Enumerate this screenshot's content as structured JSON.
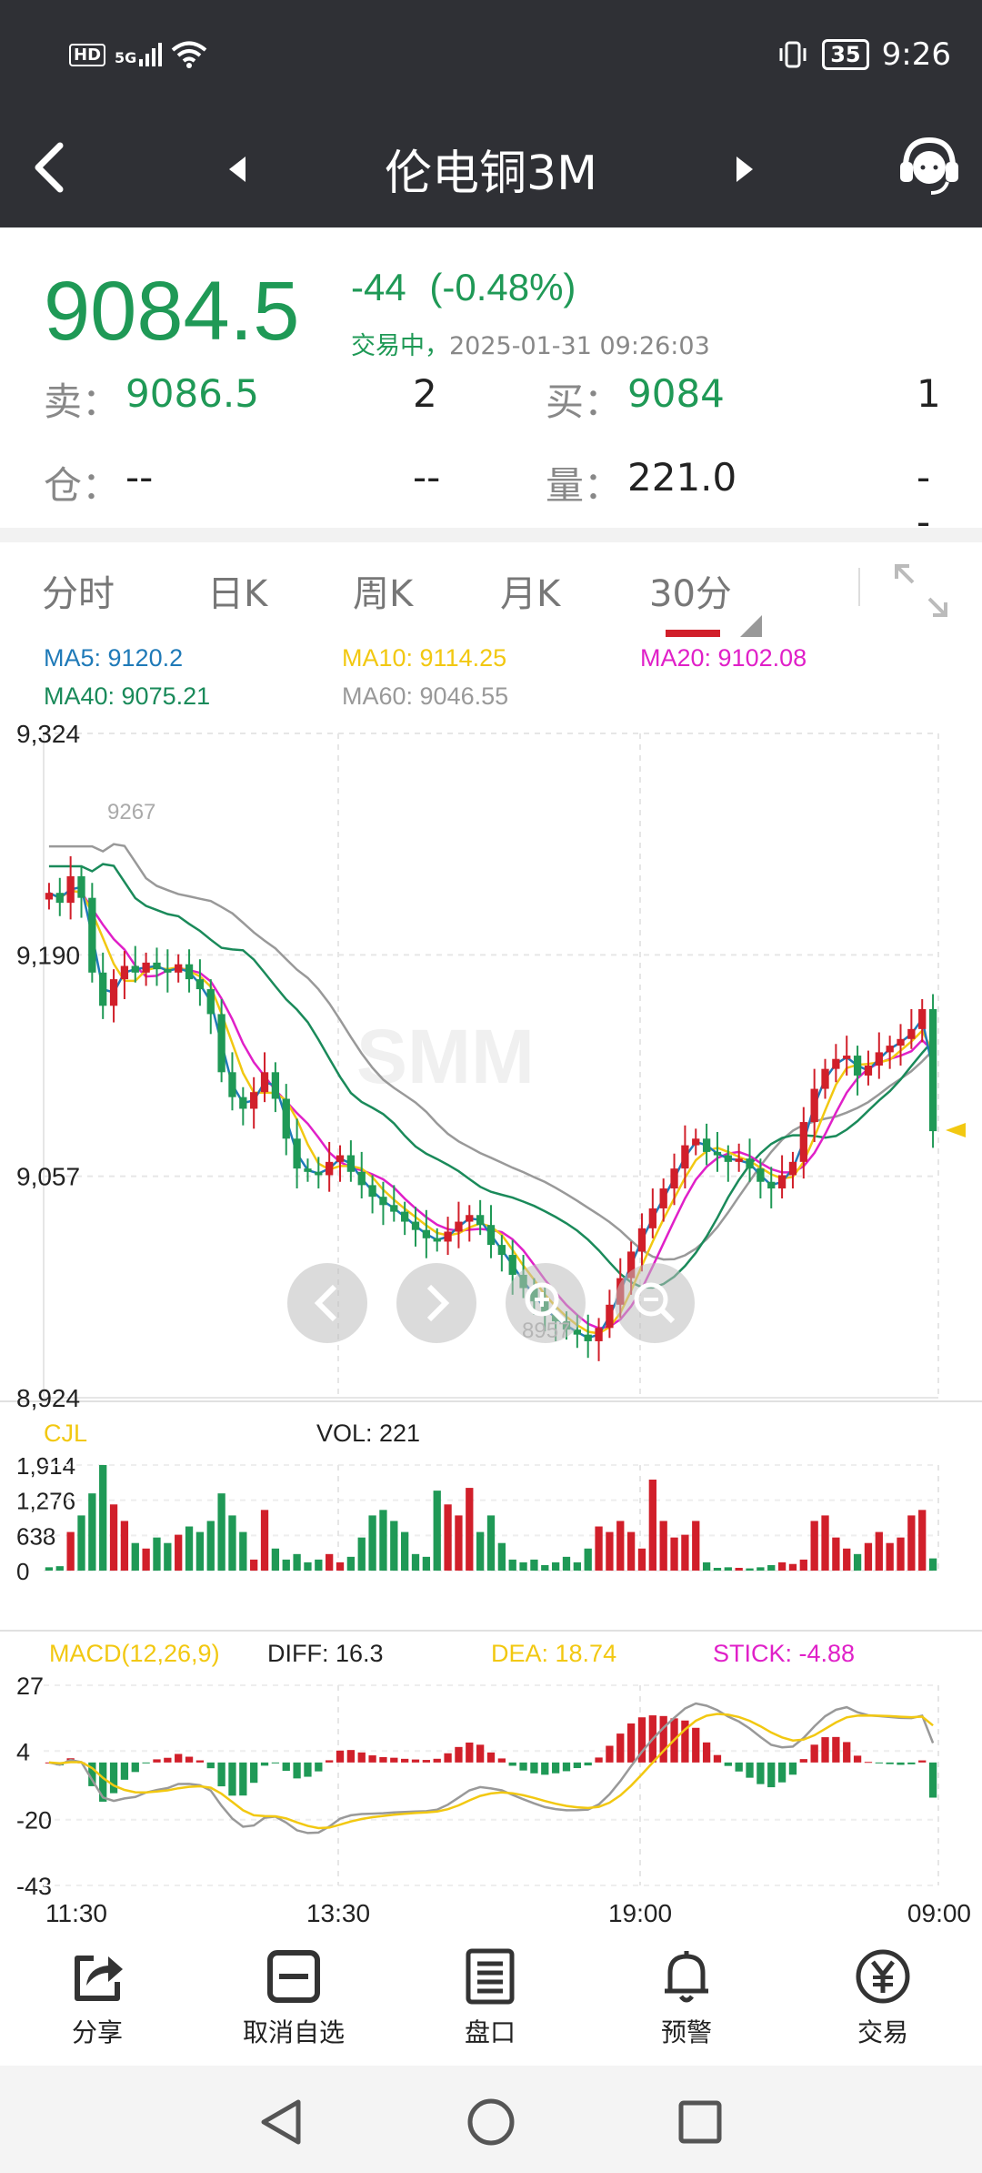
{
  "status": {
    "left_icons": [
      "hd-icon",
      "5g-signal-icon",
      "wifi-icon"
    ],
    "hd": "HD",
    "net": "5G",
    "battery": "35",
    "time": "9:26"
  },
  "nav": {
    "title": "伦电铜3M"
  },
  "quote": {
    "price": "9084.5",
    "change": "-44",
    "change_pct": "(-0.48%)",
    "status": "交易中，",
    "timestamp": "2025-01-31 09:26:03",
    "sell_label": "卖：",
    "sell_price": "9086.5",
    "sell_qty": "2",
    "buy_label": "买：",
    "buy_price": "9084",
    "buy_qty": "1",
    "oi_label": "仓：",
    "oi_value": "--",
    "oi_change": "--",
    "vol_label": "量：",
    "vol_value": "221.0",
    "vol_change": "--"
  },
  "tabs": [
    "分时",
    "日K",
    "周K",
    "月K",
    "30分"
  ],
  "ma_legend": {
    "ma5": "MA5: 9120.2",
    "ma10": "MA10: 9114.25",
    "ma20": "MA20: 9102.08",
    "ma40": "MA40: 9075.21",
    "ma60": "MA60: 9046.55"
  },
  "colors": {
    "up": "#d11f2a",
    "down": "#1f9956",
    "ma5": "#1f7ab8",
    "ma10": "#f2c811",
    "ma20": "#e020c8",
    "ma40": "#1a8a5a",
    "ma60": "#999999"
  },
  "vol_legend": {
    "name": "CJL",
    "vol": "VOL: 221"
  },
  "macd_legend": {
    "name": "MACD(12,26,9)",
    "diff": "DIFF: 16.3",
    "dea": "DEA: 18.74",
    "stick": "STICK: -4.88"
  },
  "chart_data": [
    {
      "type": "candlestick",
      "ylim": [
        8924,
        9324
      ],
      "y_ticks": [
        "9,324",
        "9,190",
        "9,057",
        "8,924"
      ],
      "x_ticks": [
        "11:30",
        "13:30",
        "19:00",
        "09:00"
      ],
      "annotations": [
        "9267",
        "8957"
      ],
      "close": [
        9228,
        9222,
        9238,
        9225,
        9180,
        9160,
        9176,
        9184,
        9180,
        9186,
        9182,
        9180,
        9185,
        9176,
        9170,
        9155,
        9120,
        9105,
        9098,
        9108,
        9120,
        9104,
        9080,
        9062,
        9060,
        9058,
        9066,
        9070,
        9060,
        9052,
        9045,
        9040,
        9036,
        9030,
        9025,
        9020,
        9018,
        9024,
        9030,
        9034,
        9028,
        9016,
        9010,
        8998,
        8990,
        8982,
        8974,
        8970,
        8965,
        8962,
        8958,
        8966,
        8980,
        8996,
        9012,
        9026,
        9038,
        9050,
        9062,
        9076,
        9080,
        9072,
        9070,
        9066,
        9068,
        9062,
        9054,
        9050,
        9058,
        9066,
        9090,
        9110,
        9122,
        9128,
        9130,
        9118,
        9124,
        9132,
        9136,
        9140,
        9146,
        9158,
        9084.5
      ],
      "ma5_end": 9120.2,
      "ma10_end": 9114.25,
      "ma20_end": 9102.08,
      "ma40_end": 9075.21,
      "ma60_end": 9046.55
    },
    {
      "type": "bar",
      "title": "VOL",
      "y_ticks": [
        "1,914",
        "1,276",
        "638",
        "0"
      ],
      "ylim": [
        0,
        1914
      ],
      "values": [
        60,
        80,
        700,
        1000,
        1400,
        1914,
        1200,
        900,
        500,
        400,
        600,
        500,
        650,
        800,
        700,
        900,
        1400,
        1000,
        700,
        200,
        1100,
        400,
        200,
        300,
        150,
        200,
        300,
        150,
        250,
        600,
        1000,
        1100,
        900,
        700,
        300,
        250,
        1450,
        1200,
        1000,
        1500,
        700,
        1000,
        500,
        200,
        150,
        200,
        100,
        150,
        250,
        150,
        400,
        800,
        700,
        900,
        700,
        400,
        1650,
        900,
        600,
        650,
        900,
        150,
        50,
        60,
        50,
        40,
        60,
        100,
        150,
        120,
        200,
        900,
        1000,
        600,
        400,
        300,
        500,
        700,
        500,
        600,
        1000,
        1100,
        221
      ]
    },
    {
      "type": "bar",
      "title": "MACD",
      "y_ticks": [
        "27",
        "4",
        "-20",
        "-43"
      ],
      "ylim": [
        -43,
        27
      ],
      "diff_end": 16.3,
      "dea_end": 18.74,
      "stick_end": -4.88
    }
  ],
  "toolbar": [
    {
      "label": "分享",
      "icon": "share-icon"
    },
    {
      "label": "取消自选",
      "icon": "remove-watchlist-icon"
    },
    {
      "label": "盘口",
      "icon": "order-book-icon"
    },
    {
      "label": "预警",
      "icon": "bell-icon"
    },
    {
      "label": "交易",
      "icon": "trade-yuan-icon"
    }
  ]
}
